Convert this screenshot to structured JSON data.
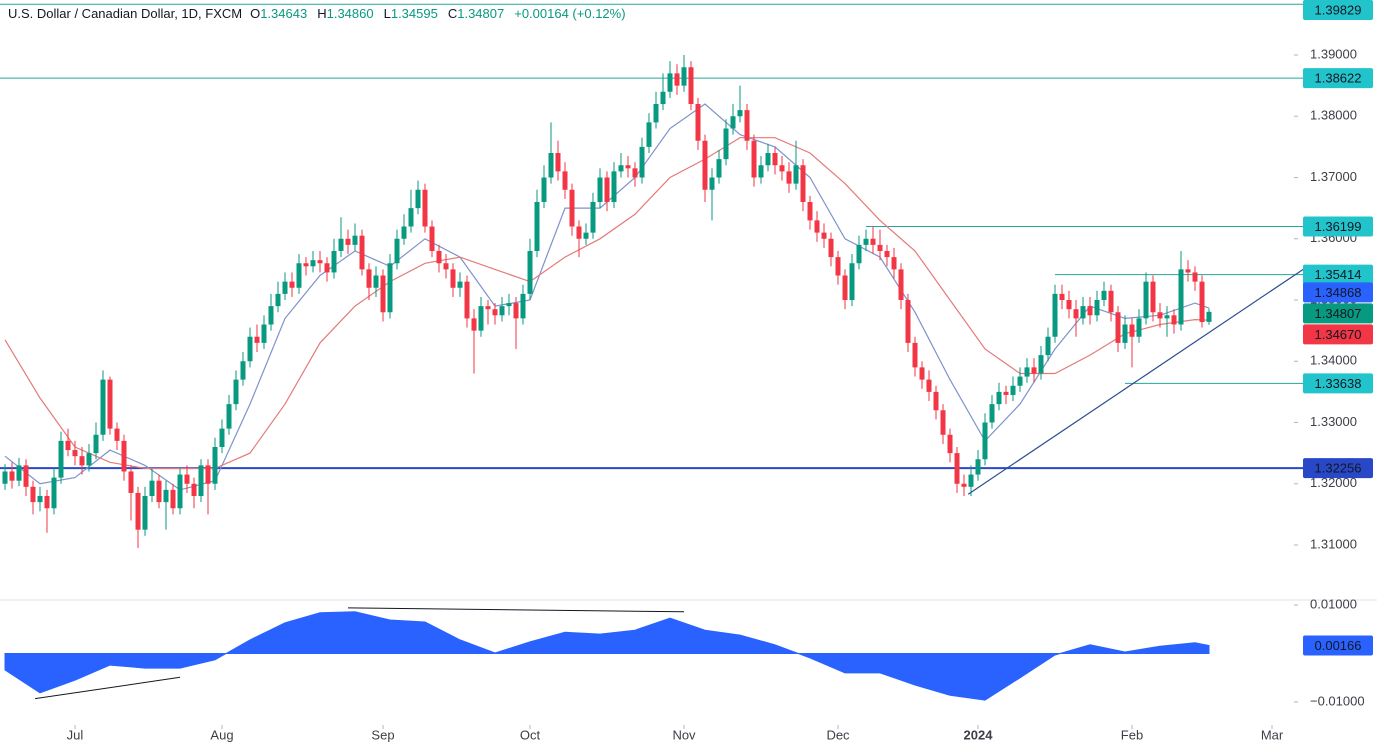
{
  "chart_data": {
    "type": "candlestick",
    "title": "U.S. Dollar / Canadian Dollar, 1D, FXCM",
    "ohlc": [
      {
        "key": "O",
        "value": "1.34643"
      },
      {
        "key": "H",
        "value": "1.34860"
      },
      {
        "key": "L",
        "value": "1.34595"
      },
      {
        "key": "C",
        "value": "1.34807"
      }
    ],
    "change": "+0.00164 (+0.12%)",
    "xlim": [
      -0.714,
      183.57
    ],
    "xticks": [
      {
        "value": 10,
        "label": "Jul"
      },
      {
        "value": 31,
        "label": "Aug"
      },
      {
        "value": 54,
        "label": "Sep"
      },
      {
        "value": 75,
        "label": "Oct"
      },
      {
        "value": 97,
        "label": "Nov"
      },
      {
        "value": 119,
        "label": "Dec"
      },
      {
        "value": 139,
        "label": "2024"
      },
      {
        "value": 161,
        "label": "Feb"
      },
      {
        "value": 181,
        "label": "Mar"
      }
    ],
    "ylim": [
      1.30102,
      1.39898
    ],
    "yticks": [
      {
        "value": 1.31,
        "label": "1.31000"
      },
      {
        "value": 1.32,
        "label": "1.32000"
      },
      {
        "value": 1.33,
        "label": "1.33000"
      },
      {
        "value": 1.34,
        "label": "1.34000"
      },
      {
        "value": 1.35,
        "label": "1.35000"
      },
      {
        "value": 1.36,
        "label": "1.36000"
      },
      {
        "value": 1.37,
        "label": "1.37000"
      },
      {
        "value": 1.38,
        "label": "1.38000"
      },
      {
        "value": 1.39,
        "label": "1.39000"
      }
    ],
    "candles": {
      "up_color": "#089981",
      "down_color": "#f23645",
      "open": [
        1.32,
        1.322,
        1.3205,
        1.323,
        1.3195,
        1.317,
        1.318,
        1.316,
        1.321,
        1.327,
        1.3255,
        1.3245,
        1.323,
        1.325,
        1.328,
        1.337,
        1.329,
        1.327,
        1.322,
        1.3185,
        1.3125,
        1.318,
        1.3205,
        1.317,
        1.319,
        1.316,
        1.3215,
        1.32,
        1.318,
        1.323,
        1.32,
        1.326,
        1.329,
        1.333,
        1.337,
        1.34,
        1.344,
        1.343,
        1.346,
        1.349,
        1.351,
        1.353,
        1.352,
        1.356,
        1.3555,
        1.3565,
        1.356,
        1.3545,
        1.358,
        1.36,
        1.359,
        1.3605,
        1.355,
        1.352,
        1.354,
        1.348,
        1.356,
        1.36,
        1.362,
        1.365,
        1.368,
        1.362,
        1.358,
        1.356,
        1.355,
        1.352,
        1.353,
        1.347,
        1.345,
        1.349,
        1.3485,
        1.3475,
        1.349,
        1.3495,
        1.347,
        1.351,
        1.358,
        1.366,
        1.37,
        1.374,
        1.371,
        1.368,
        1.362,
        1.36,
        1.361,
        1.366,
        1.37,
        1.366,
        1.371,
        1.372,
        1.3715,
        1.37,
        1.375,
        1.379,
        1.382,
        1.384,
        1.387,
        1.385,
        1.388,
        1.382,
        1.376,
        1.368,
        1.37,
        1.373,
        1.378,
        1.38,
        1.381,
        1.376,
        1.37,
        1.372,
        1.374,
        1.372,
        1.371,
        1.369,
        1.372,
        1.366,
        1.363,
        1.361,
        1.36,
        1.357,
        1.354,
        1.35,
        1.356,
        1.359,
        1.36,
        1.359,
        1.358,
        1.357,
        1.355,
        1.35,
        1.343,
        1.339,
        1.337,
        1.335,
        1.332,
        1.328,
        1.325,
        1.32,
        1.3195,
        1.3215,
        1.324,
        1.33,
        1.333,
        1.335,
        1.3345,
        1.336,
        1.3375,
        1.339,
        1.338,
        1.341,
        1.344,
        1.351,
        1.35,
        1.3485,
        1.347,
        1.349,
        1.3475,
        1.35,
        1.3515,
        1.348,
        1.343,
        1.346,
        1.344,
        1.347,
        1.353,
        1.348,
        1.347,
        1.3475,
        1.346,
        1.355,
        1.3545,
        1.353,
        1.34643
      ],
      "high": [
        1.3232,
        1.3235,
        1.3242,
        1.324,
        1.3205,
        1.3195,
        1.319,
        1.3225,
        1.3285,
        1.329,
        1.327,
        1.326,
        1.3265,
        1.33,
        1.3385,
        1.3375,
        1.33,
        1.328,
        1.323,
        1.3195,
        1.3195,
        1.3225,
        1.3215,
        1.3205,
        1.32,
        1.3225,
        1.323,
        1.321,
        1.324,
        1.324,
        1.3275,
        1.3305,
        1.3345,
        1.3385,
        1.3415,
        1.3455,
        1.346,
        1.3475,
        1.351,
        1.353,
        1.3545,
        1.3545,
        1.3575,
        1.357,
        1.358,
        1.358,
        1.357,
        1.36,
        1.3635,
        1.3615,
        1.3625,
        1.3615,
        1.356,
        1.3555,
        1.355,
        1.3575,
        1.3615,
        1.364,
        1.368,
        1.3695,
        1.369,
        1.363,
        1.359,
        1.3575,
        1.356,
        1.3545,
        1.354,
        1.3485,
        1.3505,
        1.35,
        1.3495,
        1.3505,
        1.351,
        1.3505,
        1.3525,
        1.36,
        1.368,
        1.372,
        1.379,
        1.376,
        1.3725,
        1.369,
        1.363,
        1.3625,
        1.3675,
        1.3715,
        1.371,
        1.3725,
        1.374,
        1.3735,
        1.3725,
        1.3765,
        1.3805,
        1.384,
        1.387,
        1.389,
        1.3885,
        1.39,
        1.389,
        1.383,
        1.377,
        1.3715,
        1.3745,
        1.3795,
        1.382,
        1.385,
        1.382,
        1.377,
        1.3735,
        1.3755,
        1.375,
        1.3735,
        1.3725,
        1.376,
        1.373,
        1.367,
        1.3645,
        1.3625,
        1.361,
        1.358,
        1.355,
        1.3575,
        1.3605,
        1.3615,
        1.362,
        1.3615,
        1.359,
        1.3585,
        1.356,
        1.351,
        1.344,
        1.34,
        1.3385,
        1.336,
        1.333,
        1.329,
        1.326,
        1.3215,
        1.323,
        1.3255,
        1.3315,
        1.3345,
        1.3365,
        1.336,
        1.3375,
        1.339,
        1.3405,
        1.3405,
        1.3425,
        1.3455,
        1.3525,
        1.3525,
        1.3515,
        1.35,
        1.3505,
        1.3505,
        1.3515,
        1.353,
        1.3525,
        1.349,
        1.3475,
        1.347,
        1.3485,
        1.3545,
        1.354,
        1.3495,
        1.349,
        1.3485,
        1.358,
        1.3565,
        1.3555,
        1.354,
        1.3486
      ],
      "low": [
        1.319,
        1.3192,
        1.3196,
        1.318,
        1.315,
        1.3155,
        1.312,
        1.315,
        1.32,
        1.3245,
        1.323,
        1.3215,
        1.322,
        1.324,
        1.327,
        1.328,
        1.3255,
        1.3205,
        1.314,
        1.3095,
        1.3115,
        1.317,
        1.316,
        1.3125,
        1.315,
        1.315,
        1.3185,
        1.316,
        1.317,
        1.315,
        1.319,
        1.325,
        1.328,
        1.332,
        1.336,
        1.339,
        1.3415,
        1.342,
        1.345,
        1.348,
        1.35,
        1.3505,
        1.351,
        1.354,
        1.3545,
        1.3545,
        1.353,
        1.3535,
        1.357,
        1.3575,
        1.358,
        1.354,
        1.35,
        1.3505,
        1.3465,
        1.347,
        1.355,
        1.359,
        1.361,
        1.364,
        1.361,
        1.357,
        1.3545,
        1.3535,
        1.3505,
        1.3505,
        1.3455,
        1.338,
        1.344,
        1.346,
        1.346,
        1.3465,
        1.3475,
        1.342,
        1.346,
        1.35,
        1.357,
        1.365,
        1.369,
        1.3695,
        1.3665,
        1.3605,
        1.357,
        1.359,
        1.36,
        1.365,
        1.3645,
        1.365,
        1.37,
        1.37,
        1.3685,
        1.369,
        1.374,
        1.378,
        1.381,
        1.383,
        1.3835,
        1.384,
        1.381,
        1.3745,
        1.366,
        1.363,
        1.369,
        1.372,
        1.377,
        1.379,
        1.3745,
        1.3685,
        1.369,
        1.371,
        1.3705,
        1.3695,
        1.3675,
        1.368,
        1.3645,
        1.3615,
        1.3595,
        1.3585,
        1.3555,
        1.3525,
        1.3485,
        1.349,
        1.355,
        1.358,
        1.3575,
        1.3565,
        1.3555,
        1.3535,
        1.3485,
        1.3415,
        1.3375,
        1.3355,
        1.3335,
        1.3305,
        1.3265,
        1.3235,
        1.3185,
        1.318,
        1.318,
        1.3205,
        1.323,
        1.329,
        1.332,
        1.333,
        1.3335,
        1.335,
        1.3365,
        1.3365,
        1.337,
        1.34,
        1.343,
        1.3485,
        1.347,
        1.344,
        1.346,
        1.346,
        1.3465,
        1.349,
        1.3465,
        1.3415,
        1.342,
        1.339,
        1.343,
        1.346,
        1.3465,
        1.3455,
        1.344,
        1.3445,
        1.345,
        1.353,
        1.3515,
        1.3455,
        1.34595
      ],
      "close": [
        1.322,
        1.3205,
        1.323,
        1.3195,
        1.317,
        1.318,
        1.316,
        1.321,
        1.327,
        1.3255,
        1.3245,
        1.323,
        1.325,
        1.328,
        1.337,
        1.329,
        1.327,
        1.322,
        1.3185,
        1.3125,
        1.318,
        1.3205,
        1.317,
        1.319,
        1.316,
        1.3215,
        1.32,
        1.318,
        1.323,
        1.32,
        1.326,
        1.329,
        1.333,
        1.337,
        1.34,
        1.344,
        1.343,
        1.346,
        1.349,
        1.351,
        1.353,
        1.352,
        1.356,
        1.3555,
        1.3565,
        1.356,
        1.3545,
        1.358,
        1.36,
        1.359,
        1.3605,
        1.355,
        1.352,
        1.354,
        1.348,
        1.356,
        1.36,
        1.362,
        1.365,
        1.368,
        1.362,
        1.358,
        1.356,
        1.355,
        1.352,
        1.353,
        1.347,
        1.345,
        1.349,
        1.3485,
        1.3475,
        1.349,
        1.3495,
        1.347,
        1.351,
        1.358,
        1.366,
        1.37,
        1.374,
        1.371,
        1.368,
        1.362,
        1.36,
        1.361,
        1.366,
        1.37,
        1.366,
        1.371,
        1.372,
        1.3715,
        1.37,
        1.375,
        1.379,
        1.382,
        1.384,
        1.387,
        1.385,
        1.388,
        1.382,
        1.376,
        1.368,
        1.37,
        1.373,
        1.378,
        1.38,
        1.381,
        1.376,
        1.37,
        1.372,
        1.374,
        1.372,
        1.371,
        1.369,
        1.372,
        1.366,
        1.363,
        1.361,
        1.36,
        1.357,
        1.354,
        1.35,
        1.356,
        1.359,
        1.36,
        1.359,
        1.358,
        1.357,
        1.355,
        1.35,
        1.343,
        1.339,
        1.337,
        1.335,
        1.332,
        1.328,
        1.325,
        1.32,
        1.3195,
        1.3215,
        1.324,
        1.33,
        1.333,
        1.335,
        1.3345,
        1.336,
        1.3375,
        1.339,
        1.338,
        1.341,
        1.344,
        1.351,
        1.35,
        1.3485,
        1.347,
        1.349,
        1.3475,
        1.35,
        1.3515,
        1.348,
        1.343,
        1.346,
        1.344,
        1.347,
        1.353,
        1.348,
        1.347,
        1.3475,
        1.346,
        1.355,
        1.3545,
        1.353,
        1.3464,
        1.34807
      ]
    },
    "moving_averages": [
      {
        "color": "#7e92cc",
        "x": [
          0,
          5,
          10,
          15,
          20,
          25,
          30,
          35,
          40,
          45,
          50,
          55,
          60,
          65,
          70,
          75,
          80,
          85,
          90,
          95,
          100,
          105,
          110,
          115,
          120,
          125,
          130,
          135,
          140,
          145,
          150,
          155,
          160,
          165,
          170,
          172
        ],
        "values": [
          1.3245,
          1.32,
          1.321,
          1.3255,
          1.323,
          1.319,
          1.3205,
          1.333,
          1.347,
          1.354,
          1.358,
          1.3555,
          1.36,
          1.357,
          1.349,
          1.35,
          1.365,
          1.365,
          1.37,
          1.378,
          1.382,
          1.377,
          1.375,
          1.37,
          1.36,
          1.357,
          1.348,
          1.337,
          1.327,
          1.333,
          1.342,
          1.349,
          1.347,
          1.3475,
          1.3495,
          1.34868
        ]
      },
      {
        "color": "#e57a7a",
        "x": [
          0,
          5,
          10,
          15,
          20,
          25,
          30,
          35,
          40,
          45,
          50,
          55,
          60,
          65,
          70,
          75,
          80,
          85,
          90,
          95,
          100,
          105,
          110,
          115,
          120,
          125,
          130,
          135,
          140,
          145,
          150,
          155,
          160,
          165,
          170,
          172
        ],
        "values": [
          1.3435,
          1.334,
          1.326,
          1.3235,
          1.3225,
          1.3225,
          1.3225,
          1.325,
          1.333,
          1.343,
          1.349,
          1.353,
          1.356,
          1.357,
          1.355,
          1.353,
          1.357,
          1.36,
          1.364,
          1.37,
          1.373,
          1.3765,
          1.3765,
          1.374,
          1.369,
          1.363,
          1.358,
          1.35,
          1.342,
          1.338,
          1.338,
          1.341,
          1.3445,
          1.346,
          1.3468,
          1.3467
        ]
      }
    ],
    "levels": [
      {
        "value": 1.39829,
        "start": -0.714,
        "color": "#26a69a",
        "box": "#22c4cc",
        "text_color": "#131722",
        "width": 1
      },
      {
        "value": 1.38622,
        "start": -0.714,
        "color": "#26a69a",
        "box": "#22c4cc",
        "text_color": "#131722",
        "width": 1
      },
      {
        "value": 1.36199,
        "start": 123,
        "color": "#26a69a",
        "box": "#22c4cc",
        "text_color": "#131722",
        "width": 1
      },
      {
        "value": 1.35414,
        "start": 150,
        "color": "#26a69a",
        "box": "#22c4cc",
        "text_color": "#131722",
        "width": 1
      },
      {
        "value": 1.33638,
        "start": 160,
        "color": "#26a69a",
        "box": "#22c4cc",
        "text_color": "#131722",
        "width": 1
      },
      {
        "value": 1.32256,
        "start": -0.714,
        "color": "#2848c8",
        "box": "#2848c8",
        "text_color": "#ffffff",
        "width": 2
      }
    ],
    "price_tags": [
      {
        "value": 1.34868,
        "box": "#2962ff"
      },
      {
        "value": 1.34807,
        "box": "#089981"
      },
      {
        "value": 1.3467,
        "label": "1.34670",
        "box": "#f23645"
      }
    ],
    "trendlines": [
      {
        "color": "#2a4f8f",
        "x": [
          137.6,
          185.7
        ],
        "values": [
          1.3183,
          1.3552
        ]
      }
    ],
    "oscillator": {
      "type": "area",
      "color": "#2962ff",
      "ylim": [
        -0.01474,
        0.01103
      ],
      "yticks": [
        {
          "value": 0.01,
          "label": "0.01000"
        },
        {
          "value": -0.01,
          "label": "−0.01000"
        }
      ],
      "x": [
        0,
        5,
        10,
        15,
        20,
        25,
        30,
        35,
        40,
        45,
        50,
        55,
        60,
        65,
        70,
        75,
        80,
        85,
        90,
        95,
        100,
        105,
        110,
        115,
        120,
        125,
        130,
        135,
        140,
        145,
        150,
        155,
        160,
        165,
        170,
        172
      ],
      "values": [
        -0.0034,
        -0.0081,
        -0.0055,
        -0.0024,
        -0.003,
        -0.003,
        -0.0013,
        0.0028,
        0.0063,
        0.0084,
        0.0086,
        0.0069,
        0.0065,
        0.0028,
        0.0001,
        0.0024,
        0.0044,
        0.004,
        0.0048,
        0.0073,
        0.0048,
        0.0038,
        0.0018,
        -0.0009,
        -0.004,
        -0.004,
        -0.0065,
        -0.0086,
        -0.0096,
        -0.005,
        -0.0003,
        0.0018,
        0.0003,
        0.0015,
        0.0022,
        0.00166
      ],
      "last": 0.00166,
      "lines": [
        {
          "color": "#131722",
          "x": [
            4.3,
            25
          ],
          "values": [
            -0.0093,
            -0.0049
          ]
        },
        {
          "color": "#131722",
          "x": [
            49,
            97
          ],
          "values": [
            0.0094,
            0.0086
          ]
        }
      ]
    }
  }
}
